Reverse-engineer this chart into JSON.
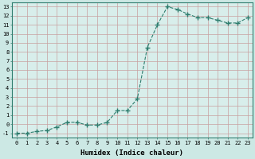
{
  "x": [
    0,
    1,
    2,
    3,
    4,
    5,
    6,
    7,
    8,
    9,
    10,
    11,
    12,
    13,
    14,
    15,
    16,
    17,
    18,
    19,
    20,
    21,
    22,
    23
  ],
  "y": [
    -1,
    -1,
    -0.8,
    -0.7,
    -0.3,
    0.2,
    0.2,
    -0.1,
    -0.1,
    0.2,
    1.5,
    1.5,
    2.8,
    8.5,
    11.0,
    13.0,
    12.7,
    12.2,
    11.8,
    11.8,
    11.5,
    11.2,
    11.2,
    11.8
  ],
  "line_color": "#2e7d6e",
  "marker": "+",
  "marker_size": 4,
  "bg_color": "#cce8e4",
  "grid_color": "#c8a0a0",
  "inner_bg": "#d8eeeb",
  "xlabel": "Humidex (Indice chaleur)",
  "xlim": [
    -0.5,
    23.5
  ],
  "ylim": [
    -1.5,
    13.5
  ],
  "yticks": [
    -1,
    0,
    1,
    2,
    3,
    4,
    5,
    6,
    7,
    8,
    9,
    10,
    11,
    12,
    13
  ],
  "xticks": [
    0,
    1,
    2,
    3,
    4,
    5,
    6,
    7,
    8,
    9,
    10,
    11,
    12,
    13,
    14,
    15,
    16,
    17,
    18,
    19,
    20,
    21,
    22,
    23
  ],
  "tick_fontsize": 5.0,
  "label_fontsize": 6.5,
  "linewidth": 0.8,
  "marker_linewidth": 1.0
}
